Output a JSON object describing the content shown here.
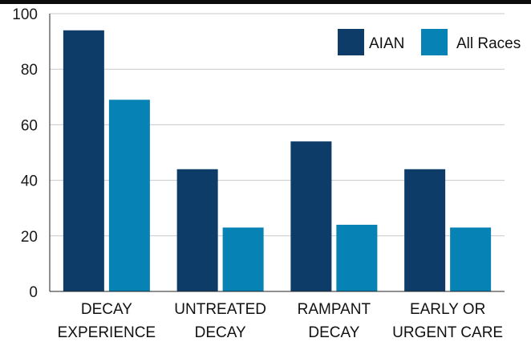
{
  "chart_data": {
    "type": "bar",
    "categories": [
      [
        "DECAY",
        "EXPERIENCE"
      ],
      [
        "UNTREATED",
        "DECAY"
      ],
      [
        "RAMPANT",
        "DECAY"
      ],
      [
        "EARLY OR",
        "URGENT CARE"
      ]
    ],
    "series": [
      {
        "name": "AIAN",
        "values": [
          94,
          44,
          54,
          44
        ],
        "color": "#0d3c68"
      },
      {
        "name": "All Races",
        "values": [
          69,
          23,
          24,
          23
        ],
        "color": "#0682b5"
      }
    ],
    "yticks": [
      0,
      20,
      40,
      60,
      80,
      100
    ],
    "ylim": [
      0,
      100
    ],
    "grid": true,
    "legend_position": "top-right",
    "title": "",
    "xlabel": "",
    "ylabel": ""
  }
}
